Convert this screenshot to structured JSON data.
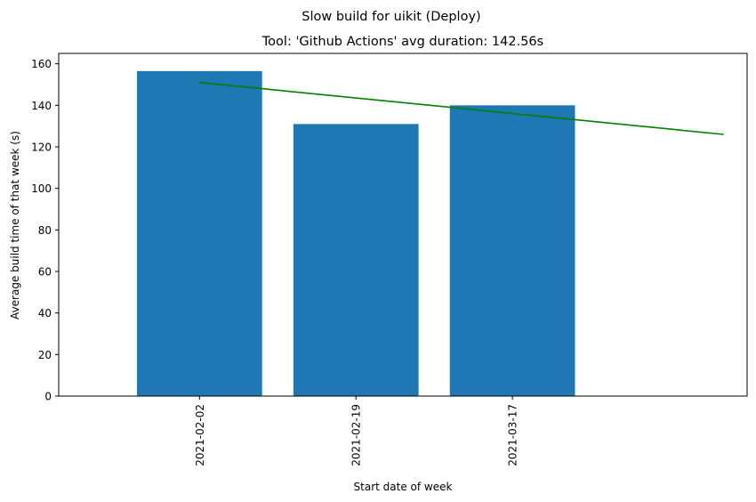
{
  "chart_data": {
    "type": "bar",
    "suptitle": "Slow build for uikit (Deploy)",
    "title": "Tool: 'Github Actions' avg duration: 142.56s",
    "xlabel": "Start date of week",
    "ylabel": "Average build time of that week (s)",
    "categories": [
      "2021-02-02",
      "2021-02-19",
      "2021-03-17"
    ],
    "values": [
      156.5,
      131,
      140
    ],
    "ylim": [
      0,
      165
    ],
    "yticks": [
      "0",
      "20",
      "40",
      "60",
      "80",
      "100",
      "120",
      "140",
      "160"
    ],
    "trend_line": {
      "start": 151,
      "end": 126
    },
    "bar_color": "#1f77b4",
    "trend_color": "#008000",
    "grid": false
  }
}
